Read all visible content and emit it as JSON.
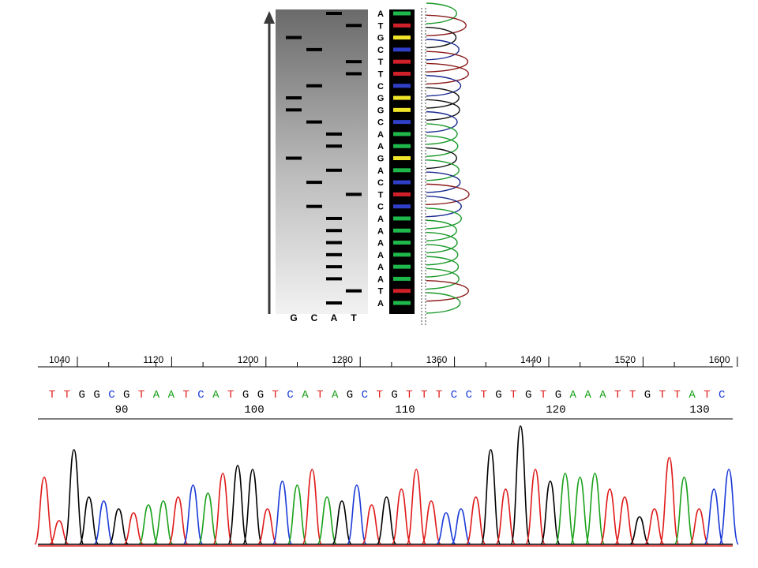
{
  "gel": {
    "lanes": [
      "G",
      "C",
      "A",
      "T"
    ],
    "sequence": [
      "A",
      "T",
      "G",
      "C",
      "T",
      "T",
      "C",
      "G",
      "G",
      "C",
      "A",
      "A",
      "G",
      "A",
      "C",
      "T",
      "C",
      "A",
      "A",
      "A",
      "A",
      "A",
      "A",
      "T",
      "A"
    ],
    "band_colors": {
      "A": "#1fb84a",
      "T": "#d0202a",
      "G": "#f2e62a",
      "C": "#2f3fc8"
    },
    "trace_colors": {
      "A": "#1a9a2a",
      "T": "#8a1a1a",
      "G": "#101010",
      "C": "#1a2a90"
    }
  },
  "trace": {
    "ruler_ticks": [
      "1040",
      "1120",
      "1200",
      "1280",
      "1360",
      "1440",
      "1520",
      "1600"
    ],
    "sequence": [
      "T",
      "T",
      "G",
      "G",
      "C",
      "G",
      "T",
      "A",
      "A",
      "T",
      "C",
      "A",
      "T",
      "G",
      "G",
      "T",
      "C",
      "A",
      "T",
      "A",
      "G",
      "C",
      "T",
      "G",
      "T",
      "T",
      "T",
      "C",
      "C",
      "T",
      "G",
      "T",
      "G",
      "T",
      "G",
      "A",
      "A",
      "A",
      "T",
      "T",
      "G",
      "T",
      "T",
      "A",
      "T",
      "C",
      "C"
    ],
    "position_labels": [
      "90",
      "100",
      "110",
      "120",
      "130"
    ],
    "base_colors": {
      "A": "#1aa11a",
      "C": "#1a3ad8",
      "G": "#000000",
      "T": "#e01a1a"
    }
  }
}
